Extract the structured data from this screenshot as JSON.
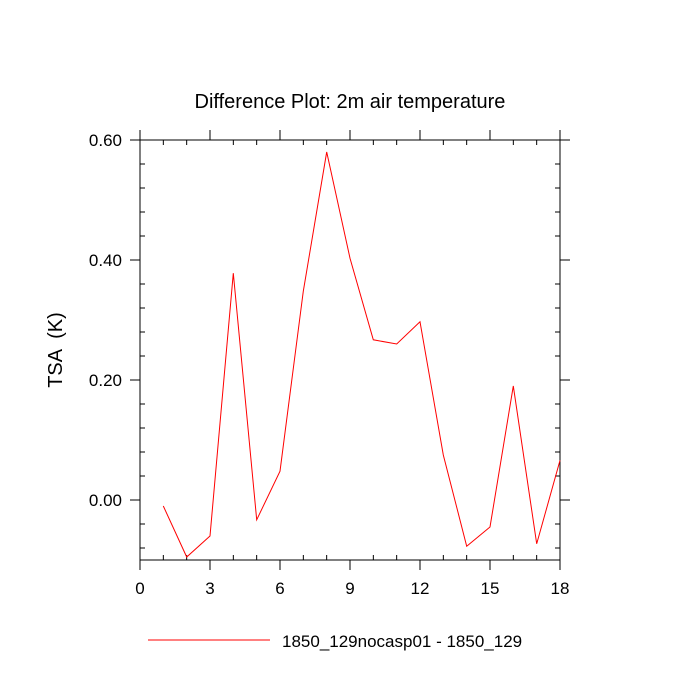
{
  "chart_data": {
    "type": "line",
    "title": "Difference Plot: 2m air temperature",
    "xlabel": "",
    "ylabel": "TSA  (K)",
    "xlim": [
      0,
      18
    ],
    "ylim": [
      -0.1,
      0.6
    ],
    "x_ticks": [
      0,
      3,
      6,
      9,
      12,
      15,
      18
    ],
    "y_ticks": [
      0.0,
      0.2,
      0.4,
      0.6
    ],
    "x_tick_labels": [
      "0",
      "3",
      "6",
      "9",
      "12",
      "15",
      "18"
    ],
    "y_tick_labels": [
      "0.00",
      "0.20",
      "0.40",
      "0.60"
    ],
    "grid": false,
    "legend_position": "bottom",
    "series": [
      {
        "name": "1850_129nocasp01 - 1850_129",
        "color": "#ff0000",
        "x": [
          1,
          2,
          3,
          4,
          5,
          6,
          7,
          8,
          9,
          10,
          11,
          12,
          13,
          14,
          15,
          16,
          17,
          18
        ],
        "y": [
          -0.01,
          -0.095,
          -0.06,
          0.378,
          -0.033,
          0.048,
          0.348,
          0.58,
          0.403,
          0.267,
          0.26,
          0.297,
          0.075,
          -0.077,
          -0.045,
          0.19,
          -0.073,
          0.066
        ]
      }
    ]
  }
}
